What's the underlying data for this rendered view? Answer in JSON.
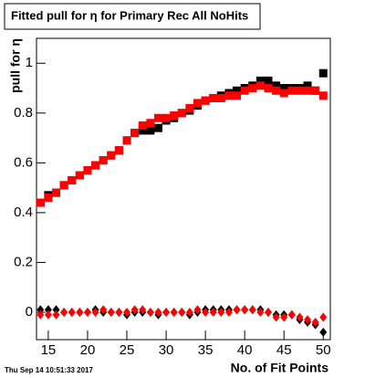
{
  "chart_data": {
    "type": "scatter",
    "title": "Fitted pull for  η for Primary Rec All NoHits",
    "y_label": "pull for  η",
    "x_label": "No. of Fit Points",
    "date": "Thu Sep 14 10:51:33 2017",
    "x": [
      14,
      15,
      16,
      17,
      18,
      19,
      20,
      21,
      22,
      23,
      24,
      25,
      26,
      27,
      28,
      29,
      30,
      31,
      32,
      33,
      34,
      35,
      36,
      37,
      38,
      39,
      40,
      41,
      42,
      43,
      44,
      45,
      46,
      47,
      48,
      49,
      50
    ],
    "series": [
      {
        "color": "#000000",
        "marker": "square",
        "values": [
          0.44,
          0.47,
          0.48,
          0.51,
          0.53,
          0.55,
          0.57,
          0.59,
          0.61,
          0.63,
          0.65,
          0.69,
          0.72,
          0.73,
          0.73,
          0.74,
          0.77,
          0.78,
          0.8,
          0.81,
          0.83,
          0.85,
          0.86,
          0.87,
          0.88,
          0.89,
          0.9,
          0.91,
          0.93,
          0.93,
          0.91,
          0.9,
          0.9,
          0.9,
          0.91,
          0.89,
          0.96
        ]
      },
      {
        "color": "#ff0000",
        "marker": "square",
        "values": [
          0.44,
          0.46,
          0.48,
          0.51,
          0.53,
          0.55,
          0.57,
          0.59,
          0.61,
          0.63,
          0.65,
          0.69,
          0.72,
          0.75,
          0.76,
          0.78,
          0.78,
          0.79,
          0.8,
          0.82,
          0.84,
          0.85,
          0.86,
          0.86,
          0.87,
          0.87,
          0.89,
          0.9,
          0.91,
          0.9,
          0.89,
          0.88,
          0.89,
          0.89,
          0.89,
          0.89,
          0.87
        ]
      },
      {
        "color": "#000000",
        "marker": "diamond",
        "values": [
          0.01,
          0.01,
          0.01,
          0.0,
          0.0,
          0.0,
          0.0,
          0.01,
          0.0,
          0.0,
          0.0,
          -0.01,
          0.0,
          0.0,
          0.0,
          -0.01,
          0.0,
          0.0,
          0.0,
          -0.01,
          0.0,
          0.01,
          0.01,
          0.01,
          0.01,
          0.01,
          0.01,
          0.01,
          0.01,
          0.0,
          -0.01,
          -0.01,
          -0.01,
          -0.03,
          -0.04,
          -0.05,
          -0.08
        ]
      },
      {
        "color": "#ff0000",
        "marker": "diamond",
        "values": [
          -0.01,
          -0.01,
          -0.01,
          0.0,
          0.0,
          0.0,
          0.0,
          0.0,
          0.01,
          0.0,
          0.0,
          0.0,
          0.01,
          0.01,
          0.0,
          0.0,
          0.0,
          0.0,
          0.0,
          0.0,
          0.01,
          0.0,
          0.0,
          0.0,
          0.0,
          0.01,
          0.01,
          0.01,
          0.0,
          0.0,
          -0.02,
          -0.02,
          -0.01,
          -0.02,
          -0.03,
          -0.04,
          -0.02
        ]
      }
    ],
    "xlim": [
      13.5,
      50.9
    ],
    "xticks": [
      15,
      20,
      25,
      30,
      35,
      40,
      45,
      50
    ],
    "ylim": [
      -0.11,
      1.1
    ],
    "yticks": [
      0,
      0.2,
      0.4,
      0.6,
      0.8,
      1
    ]
  }
}
